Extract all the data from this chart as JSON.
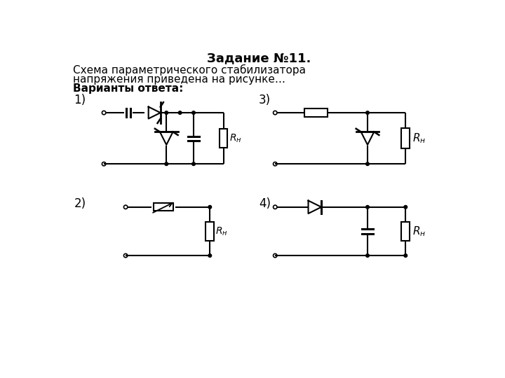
{
  "title": "Задание №11.",
  "line1": "Схема параметрического стабилизатора",
  "line2": "напряжения приведена на рисунке…",
  "line3bold": "Варианты ответа:",
  "bg_color": "#ffffff"
}
